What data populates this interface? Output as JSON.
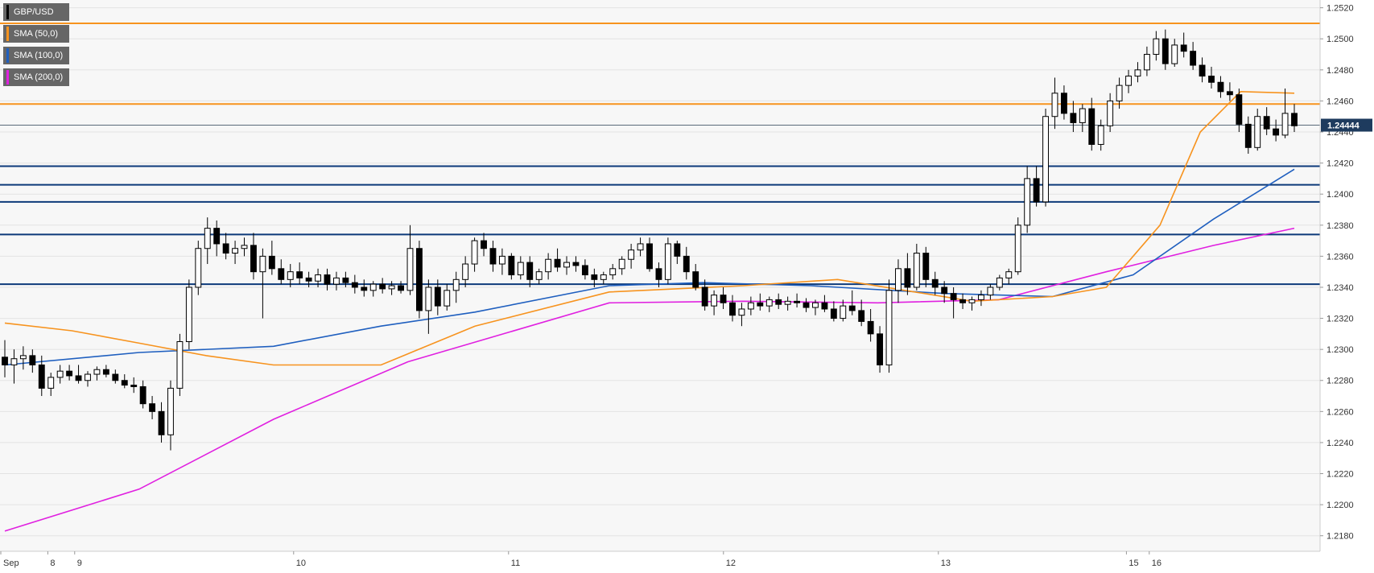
{
  "legend": {
    "symbol": "GBP/USD",
    "sma50": "SMA (50,0)",
    "sma100": "SMA (100,0)",
    "sma200": "SMA (200,0)"
  },
  "colors": {
    "candle_up": "#ffffff",
    "candle_down": "#000000",
    "sma50": "#f7931e",
    "sma100": "#1f5fbf",
    "sma200": "#e020e0",
    "resistance": "#f7931e",
    "support": "#0d3a7a",
    "price_tag": "#1e3b5e"
  },
  "chart_data": {
    "type": "candlestick",
    "title": "GBP/USD",
    "ylim": [
      1.217,
      1.2525
    ],
    "yticks": [
      "1.2180",
      "1.2200",
      "1.2220",
      "1.2240",
      "1.2260",
      "1.2280",
      "1.2300",
      "1.2320",
      "1.2340",
      "1.2360",
      "1.2380",
      "1.2400",
      "1.2420",
      "1.2440",
      "1.2460",
      "1.2480",
      "1.2500",
      "1.2520"
    ],
    "xticks": [
      "Sep",
      "8",
      "9",
      "10",
      "11",
      "12",
      "13",
      "15",
      "16"
    ],
    "current_price": "1.24444",
    "horizontal_levels": [
      {
        "value": 1.251,
        "type": "resistance"
      },
      {
        "value": 1.2458,
        "type": "resistance"
      },
      {
        "value": 1.2418,
        "type": "support"
      },
      {
        "value": 1.2406,
        "type": "support"
      },
      {
        "value": 1.2395,
        "type": "support"
      },
      {
        "value": 1.2374,
        "type": "support"
      },
      {
        "value": 1.2342,
        "type": "support"
      }
    ],
    "candles": [
      [
        1.2295,
        1.2306,
        1.2282,
        1.229
      ],
      [
        1.229,
        1.23,
        1.2278,
        1.2294
      ],
      [
        1.2294,
        1.2302,
        1.2287,
        1.2296
      ],
      [
        1.2296,
        1.23,
        1.2285,
        1.229
      ],
      [
        1.229,
        1.2296,
        1.227,
        1.2275
      ],
      [
        1.2275,
        1.2285,
        1.227,
        1.2282
      ],
      [
        1.2282,
        1.229,
        1.2278,
        1.2286
      ],
      [
        1.2286,
        1.229,
        1.228,
        1.2283
      ],
      [
        1.2283,
        1.229,
        1.2278,
        1.228
      ],
      [
        1.228,
        1.2286,
        1.2276,
        1.2284
      ],
      [
        1.2284,
        1.2289,
        1.228,
        1.2287
      ],
      [
        1.2287,
        1.229,
        1.2282,
        1.2284
      ],
      [
        1.2284,
        1.2287,
        1.2278,
        1.228
      ],
      [
        1.228,
        1.2284,
        1.2275,
        1.2277
      ],
      [
        1.2277,
        1.2282,
        1.2272,
        1.2276
      ],
      [
        1.2276,
        1.228,
        1.2262,
        1.2265
      ],
      [
        1.2265,
        1.227,
        1.2255,
        1.226
      ],
      [
        1.226,
        1.2266,
        1.224,
        1.2245
      ],
      [
        1.2245,
        1.228,
        1.2235,
        1.2275
      ],
      [
        1.2275,
        1.231,
        1.227,
        1.2305
      ],
      [
        1.2305,
        1.2345,
        1.23,
        1.234
      ],
      [
        1.234,
        1.237,
        1.2335,
        1.2365
      ],
      [
        1.2365,
        1.2385,
        1.2355,
        1.2378
      ],
      [
        1.2378,
        1.2383,
        1.236,
        1.2368
      ],
      [
        1.2368,
        1.2375,
        1.2358,
        1.2362
      ],
      [
        1.2362,
        1.237,
        1.2355,
        1.2365
      ],
      [
        1.2365,
        1.2372,
        1.236,
        1.2367
      ],
      [
        1.2367,
        1.2375,
        1.2345,
        1.235
      ],
      [
        1.235,
        1.2365,
        1.232,
        1.236
      ],
      [
        1.236,
        1.237,
        1.2348,
        1.2352
      ],
      [
        1.2352,
        1.2358,
        1.2342,
        1.2345
      ],
      [
        1.2345,
        1.2355,
        1.234,
        1.235
      ],
      [
        1.235,
        1.2356,
        1.2342,
        1.2346
      ],
      [
        1.2346,
        1.235,
        1.234,
        1.2344
      ],
      [
        1.2344,
        1.2352,
        1.234,
        1.2348
      ],
      [
        1.2348,
        1.2352,
        1.2338,
        1.2342
      ],
      [
        1.2342,
        1.235,
        1.2338,
        1.2346
      ],
      [
        1.2346,
        1.235,
        1.234,
        1.2343
      ],
      [
        1.2343,
        1.2348,
        1.2336,
        1.234
      ],
      [
        1.234,
        1.2345,
        1.2334,
        1.2338
      ],
      [
        1.2338,
        1.2344,
        1.2334,
        1.2342
      ],
      [
        1.2342,
        1.2346,
        1.2336,
        1.2339
      ],
      [
        1.2339,
        1.2344,
        1.2335,
        1.2341
      ],
      [
        1.2341,
        1.2344,
        1.2336,
        1.2338
      ],
      [
        1.2338,
        1.238,
        1.2335,
        1.2365
      ],
      [
        1.2365,
        1.237,
        1.232,
        1.2325
      ],
      [
        1.2325,
        1.2345,
        1.231,
        1.234
      ],
      [
        1.234,
        1.2345,
        1.2322,
        1.2328
      ],
      [
        1.2328,
        1.2342,
        1.2325,
        1.2338
      ],
      [
        1.2338,
        1.235,
        1.233,
        1.2345
      ],
      [
        1.2345,
        1.236,
        1.234,
        1.2355
      ],
      [
        1.2355,
        1.2372,
        1.235,
        1.237
      ],
      [
        1.237,
        1.2375,
        1.236,
        1.2365
      ],
      [
        1.2365,
        1.237,
        1.235,
        1.2355
      ],
      [
        1.2355,
        1.2365,
        1.2348,
        1.236
      ],
      [
        1.236,
        1.2362,
        1.2345,
        1.2348
      ],
      [
        1.2348,
        1.236,
        1.2345,
        1.2356
      ],
      [
        1.2356,
        1.236,
        1.234,
        1.2345
      ],
      [
        1.2345,
        1.2352,
        1.2342,
        1.235
      ],
      [
        1.235,
        1.2362,
        1.2345,
        1.2358
      ],
      [
        1.2358,
        1.2365,
        1.235,
        1.2353
      ],
      [
        1.2353,
        1.236,
        1.2348,
        1.2356
      ],
      [
        1.2356,
        1.236,
        1.235,
        1.2354
      ],
      [
        1.2354,
        1.2358,
        1.2345,
        1.2348
      ],
      [
        1.2348,
        1.2352,
        1.234,
        1.2345
      ],
      [
        1.2345,
        1.235,
        1.2342,
        1.2348
      ],
      [
        1.2348,
        1.2355,
        1.2345,
        1.2352
      ],
      [
        1.2352,
        1.236,
        1.2348,
        1.2358
      ],
      [
        1.2358,
        1.2368,
        1.2352,
        1.2364
      ],
      [
        1.2364,
        1.2372,
        1.236,
        1.2368
      ],
      [
        1.2368,
        1.2372,
        1.235,
        1.2352
      ],
      [
        1.2352,
        1.2356,
        1.234,
        1.2345
      ],
      [
        1.2345,
        1.2372,
        1.2342,
        1.2368
      ],
      [
        1.2368,
        1.237,
        1.2355,
        1.236
      ],
      [
        1.236,
        1.2366,
        1.2345,
        1.235
      ],
      [
        1.235,
        1.2355,
        1.2338,
        1.234
      ],
      [
        1.234,
        1.2345,
        1.2325,
        1.2328
      ],
      [
        1.2328,
        1.2338,
        1.2322,
        1.2335
      ],
      [
        1.2335,
        1.234,
        1.2326,
        1.233
      ],
      [
        1.233,
        1.2335,
        1.2318,
        1.2322
      ],
      [
        1.2322,
        1.233,
        1.2315,
        1.2326
      ],
      [
        1.2326,
        1.2334,
        1.2322,
        1.233
      ],
      [
        1.233,
        1.2336,
        1.2325,
        1.2328
      ],
      [
        1.2328,
        1.2334,
        1.2324,
        1.2332
      ],
      [
        1.2332,
        1.2336,
        1.2326,
        1.2329
      ],
      [
        1.2329,
        1.2334,
        1.2325,
        1.2331
      ],
      [
        1.2331,
        1.2336,
        1.2327,
        1.233
      ],
      [
        1.233,
        1.2333,
        1.2324,
        1.2327
      ],
      [
        1.2327,
        1.2332,
        1.2322,
        1.233
      ],
      [
        1.233,
        1.2335,
        1.2324,
        1.2326
      ],
      [
        1.2326,
        1.2331,
        1.2318,
        1.232
      ],
      [
        1.232,
        1.2332,
        1.2318,
        1.2328
      ],
      [
        1.2328,
        1.2338,
        1.2322,
        1.2325
      ],
      [
        1.2325,
        1.2332,
        1.2315,
        1.2318
      ],
      [
        1.2318,
        1.2326,
        1.2305,
        1.231
      ],
      [
        1.231,
        1.2315,
        1.2285,
        1.229
      ],
      [
        1.229,
        1.2345,
        1.2285,
        1.2338
      ],
      [
        1.2338,
        1.2358,
        1.233,
        1.2352
      ],
      [
        1.2352,
        1.2362,
        1.2335,
        1.234
      ],
      [
        1.234,
        1.2368,
        1.2338,
        1.2362
      ],
      [
        1.2362,
        1.2366,
        1.234,
        1.2345
      ],
      [
        1.2345,
        1.235,
        1.2335,
        1.234
      ],
      [
        1.234,
        1.2344,
        1.233,
        1.2336
      ],
      [
        1.2336,
        1.234,
        1.232,
        1.2332
      ],
      [
        1.2332,
        1.2336,
        1.2326,
        1.233
      ],
      [
        1.233,
        1.2334,
        1.2325,
        1.2332
      ],
      [
        1.2332,
        1.2338,
        1.2328,
        1.2335
      ],
      [
        1.2335,
        1.2342,
        1.2332,
        1.234
      ],
      [
        1.234,
        1.2348,
        1.2338,
        1.2346
      ],
      [
        1.2346,
        1.2352,
        1.2342,
        1.235
      ],
      [
        1.235,
        1.2385,
        1.2348,
        1.238
      ],
      [
        1.238,
        1.2418,
        1.2375,
        1.241
      ],
      [
        1.241,
        1.2418,
        1.2392,
        1.2395
      ],
      [
        1.2395,
        1.2455,
        1.2392,
        1.245
      ],
      [
        1.245,
        1.2475,
        1.2442,
        1.2465
      ],
      [
        1.2465,
        1.247,
        1.2448,
        1.2452
      ],
      [
        1.2452,
        1.246,
        1.244,
        1.2446
      ],
      [
        1.2446,
        1.2458,
        1.244,
        1.2455
      ],
      [
        1.2455,
        1.2462,
        1.2428,
        1.2432
      ],
      [
        1.2432,
        1.2448,
        1.2428,
        1.2444
      ],
      [
        1.2444,
        1.2465,
        1.244,
        1.246
      ],
      [
        1.246,
        1.2475,
        1.2455,
        1.247
      ],
      [
        1.247,
        1.248,
        1.2465,
        1.2476
      ],
      [
        1.2476,
        1.2485,
        1.2472,
        1.248
      ],
      [
        1.248,
        1.2495,
        1.2476,
        1.249
      ],
      [
        1.249,
        1.2505,
        1.2486,
        1.25
      ],
      [
        1.25,
        1.2506,
        1.248,
        1.2484
      ],
      [
        1.2484,
        1.25,
        1.2482,
        1.2496
      ],
      [
        1.2496,
        1.2504,
        1.2488,
        1.2492
      ],
      [
        1.2492,
        1.2498,
        1.248,
        1.2483
      ],
      [
        1.2483,
        1.2488,
        1.2472,
        1.2476
      ],
      [
        1.2476,
        1.2482,
        1.2468,
        1.2472
      ],
      [
        1.2472,
        1.2476,
        1.2462,
        1.2466
      ],
      [
        1.2466,
        1.2472,
        1.246,
        1.2464
      ],
      [
        1.2464,
        1.2468,
        1.244,
        1.2445
      ],
      [
        1.2445,
        1.245,
        1.2426,
        1.243
      ],
      [
        1.243,
        1.2455,
        1.2428,
        1.245
      ],
      [
        1.245,
        1.2456,
        1.2438,
        1.2442
      ],
      [
        1.2442,
        1.2448,
        1.2434,
        1.2438
      ],
      [
        1.2438,
        1.2468,
        1.2436,
        1.2452
      ],
      [
        1.2452,
        1.2458,
        1.244,
        1.2444
      ]
    ],
    "sma50": [
      [
        0,
        1.2317
      ],
      [
        0.05,
        1.2312
      ],
      [
        0.1,
        1.2304
      ],
      [
        0.15,
        1.2296
      ],
      [
        0.2,
        1.229
      ],
      [
        0.28,
        1.229
      ],
      [
        0.35,
        1.2315
      ],
      [
        0.45,
        1.2337
      ],
      [
        0.55,
        1.2341
      ],
      [
        0.62,
        1.2345
      ],
      [
        0.72,
        1.2331
      ],
      [
        0.78,
        1.2334
      ],
      [
        0.82,
        1.234
      ],
      [
        0.86,
        1.238
      ],
      [
        0.89,
        1.244
      ],
      [
        0.92,
        1.2466
      ],
      [
        0.96,
        1.2465
      ]
    ],
    "sma100": [
      [
        0,
        1.229
      ],
      [
        0.1,
        1.2298
      ],
      [
        0.2,
        1.2302
      ],
      [
        0.28,
        1.2315
      ],
      [
        0.35,
        1.2324
      ],
      [
        0.45,
        1.2341
      ],
      [
        0.52,
        1.2343
      ],
      [
        0.6,
        1.2341
      ],
      [
        0.7,
        1.2336
      ],
      [
        0.78,
        1.2334
      ],
      [
        0.84,
        1.2348
      ],
      [
        0.9,
        1.2384
      ],
      [
        0.96,
        1.2416
      ]
    ],
    "sma200": [
      [
        0,
        1.2183
      ],
      [
        0.1,
        1.221
      ],
      [
        0.2,
        1.2255
      ],
      [
        0.3,
        1.2292
      ],
      [
        0.45,
        1.233
      ],
      [
        0.55,
        1.2331
      ],
      [
        0.65,
        1.233
      ],
      [
        0.74,
        1.2332
      ],
      [
        0.82,
        1.235
      ],
      [
        0.9,
        1.2367
      ],
      [
        0.96,
        1.2378
      ]
    ]
  }
}
